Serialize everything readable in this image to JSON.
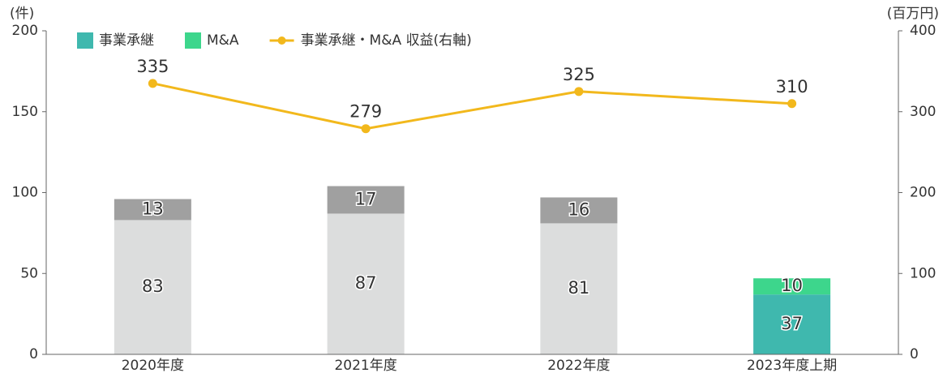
{
  "chart_data": {
    "type": "bar",
    "categories": [
      "2020年度",
      "2021年度",
      "2022年度",
      "2023年度上期"
    ],
    "series": [
      {
        "name": "事業承継",
        "color": "#3fb8ae",
        "point_colors": [
          "#dcdddd",
          "#dcdddd",
          "#dcdddd",
          "#3fb8ae"
        ],
        "values": [
          83,
          87,
          81,
          37
        ]
      },
      {
        "name": "M&A",
        "color": "#3dd68c",
        "point_colors": [
          "#a0a0a0",
          "#a0a0a0",
          "#a0a0a0",
          "#3dd68c"
        ],
        "values": [
          13,
          17,
          16,
          10
        ]
      },
      {
        "name": "事業承継・M&A 収益(右軸)",
        "type": "line",
        "axis": "y2",
        "color": "#f2b81c",
        "values": [
          335,
          279,
          325,
          310
        ]
      }
    ],
    "ylabel": "(件)",
    "y2label": "(百万円)",
    "ylim": [
      0,
      200
    ],
    "yticks": [
      0,
      50,
      100,
      150,
      200
    ],
    "y2lim": [
      0,
      400
    ],
    "y2ticks": [
      0,
      100,
      200,
      300,
      400
    ]
  }
}
